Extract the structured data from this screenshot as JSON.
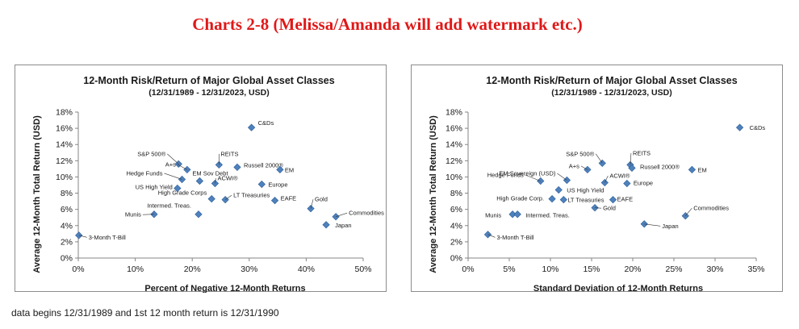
{
  "page": {
    "title": "Charts 2-8 (Melissa/Amanda will add watermark etc.)",
    "footnote": "data begins 12/31/1989 and 1st 12 month return is 12/31/1990"
  },
  "colors": {
    "marker": "#4f81bd",
    "marker_edge": "#2b5e97",
    "title": "#e01818",
    "axis": "#868686"
  },
  "chart_data": [
    {
      "type": "scatter",
      "title": "12-Month Risk/Return of Major Global Asset Classes",
      "subtitle": "(12/31/1989 - 12/31/2023, USD)",
      "xlabel": "Percent of Negative 12-Month Returns",
      "ylabel": "Average 12-Month Total Return (USD)",
      "xlim": [
        0,
        50
      ],
      "ylim": [
        0,
        18
      ],
      "xticks": [
        0,
        10,
        20,
        30,
        40,
        50
      ],
      "xtick_labels": [
        "0%",
        "10%",
        "20%",
        "30%",
        "40%",
        "50%"
      ],
      "yticks": [
        0,
        2,
        4,
        6,
        8,
        10,
        12,
        14,
        16,
        18
      ],
      "ytick_labels": [
        "0%",
        "2%",
        "4%",
        "6%",
        "8%",
        "10%",
        "12%",
        "14%",
        "16%",
        "18%"
      ],
      "grid": false,
      "points": [
        {
          "label": "C&Ds",
          "x": 30.4,
          "y": 16.1
        },
        {
          "label": "S&P 500®",
          "x": 17.6,
          "y": 11.6
        },
        {
          "label": "A+s",
          "x": 19.1,
          "y": 10.9
        },
        {
          "label": "Hedge Funds",
          "x": 18.2,
          "y": 9.7
        },
        {
          "label": "EM Sov Debt",
          "x": 21.3,
          "y": 9.5
        },
        {
          "label": "REITS",
          "x": 24.7,
          "y": 11.5
        },
        {
          "label": "Russell 2000®",
          "x": 27.9,
          "y": 11.2
        },
        {
          "label": "EM",
          "x": 35.4,
          "y": 10.9
        },
        {
          "label": "ACWI®",
          "x": 24.0,
          "y": 9.2
        },
        {
          "label": "Europe",
          "x": 32.2,
          "y": 9.1
        },
        {
          "label": "US High Yield",
          "x": 17.4,
          "y": 8.6
        },
        {
          "label": "High Grade Corps",
          "x": 23.4,
          "y": 7.3
        },
        {
          "label": "LT Treasuries",
          "x": 25.8,
          "y": 7.2
        },
        {
          "label": "Intermed. Treas.",
          "x": 21.1,
          "y": 5.4
        },
        {
          "label": "EAFE",
          "x": 34.5,
          "y": 7.1
        },
        {
          "label": "Munis",
          "x": 13.3,
          "y": 5.4
        },
        {
          "label": "Gold",
          "x": 40.8,
          "y": 6.1
        },
        {
          "label": "Commodities",
          "x": 45.2,
          "y": 5.1
        },
        {
          "label": "Japan",
          "x": 43.5,
          "y": 4.1
        },
        {
          "label": "3-Month T-Bill",
          "x": 0.1,
          "y": 2.8
        }
      ]
    },
    {
      "type": "scatter",
      "title": "12-Month Risk/Return of Major Global Asset Classes",
      "subtitle": "(12/31/1989 - 12/31/2023, USD)",
      "xlabel": "Standard Deviation of 12-Month Returns",
      "ylabel": "Average 12-Month Total Return (USD)",
      "xlim": [
        0,
        35
      ],
      "ylim": [
        0,
        18
      ],
      "xticks": [
        0,
        5,
        10,
        15,
        20,
        25,
        30,
        35
      ],
      "xtick_labels": [
        "0%",
        "5%",
        "10%",
        "15%",
        "20%",
        "25%",
        "30%",
        "35%"
      ],
      "yticks": [
        0,
        2,
        4,
        6,
        8,
        10,
        12,
        14,
        16,
        18
      ],
      "ytick_labels": [
        "0%",
        "2%",
        "4%",
        "6%",
        "8%",
        "10%",
        "12%",
        "14%",
        "16%",
        "18%"
      ],
      "grid": false,
      "points": [
        {
          "label": "C&Ds",
          "x": 33.0,
          "y": 16.1
        },
        {
          "label": "S&P 500®",
          "x": 16.3,
          "y": 11.7
        },
        {
          "label": "REITS",
          "x": 19.7,
          "y": 11.5
        },
        {
          "label": "Russell 2000®",
          "x": 19.9,
          "y": 11.1
        },
        {
          "label": "EM",
          "x": 27.2,
          "y": 10.9
        },
        {
          "label": "A+s",
          "x": 14.5,
          "y": 10.9
        },
        {
          "label": "EM Sovereign (USD)",
          "x": 12.0,
          "y": 9.6
        },
        {
          "label": "ACWI®",
          "x": 16.6,
          "y": 9.3
        },
        {
          "label": "Europe",
          "x": 19.3,
          "y": 9.2
        },
        {
          "label": "Hedge Funds",
          "x": 8.8,
          "y": 9.5
        },
        {
          "label": "US High Yield",
          "x": 11.0,
          "y": 8.4
        },
        {
          "label": "High Grade Corp.",
          "x": 10.2,
          "y": 7.3
        },
        {
          "label": "LT Treasuries",
          "x": 11.6,
          "y": 7.2
        },
        {
          "label": "EAFE",
          "x": 17.6,
          "y": 7.2
        },
        {
          "label": "Gold",
          "x": 15.4,
          "y": 6.2
        },
        {
          "label": "Munis",
          "x": 5.4,
          "y": 5.4
        },
        {
          "label": "Intermed. Treas.",
          "x": 6.0,
          "y": 5.4
        },
        {
          "label": "Commodities",
          "x": 26.4,
          "y": 5.2
        },
        {
          "label": "Japan",
          "x": 21.4,
          "y": 4.2
        },
        {
          "label": "3-Month T-Bill",
          "x": 2.4,
          "y": 2.9
        }
      ]
    }
  ]
}
